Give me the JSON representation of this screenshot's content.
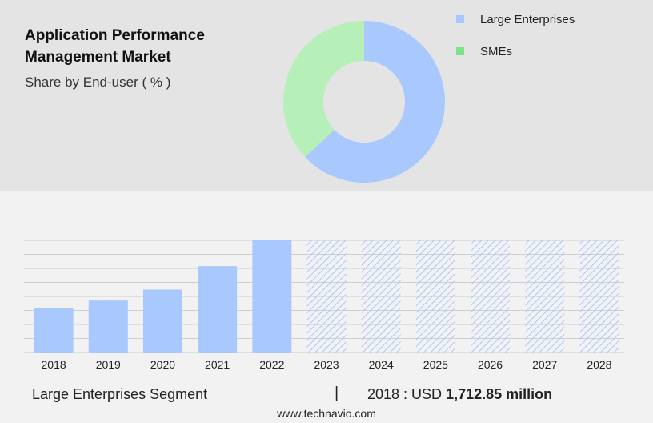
{
  "header": {
    "title": "Application Performance Management Market",
    "subtitle": "Share by End-user ( % )"
  },
  "colors": {
    "large_enterprises": "#a8c8fe",
    "smes": "#b6f0b8",
    "legend_smes": "#7de38a",
    "grid": "#cfcfcf"
  },
  "chart_data": [
    {
      "type": "pie",
      "subtype": "donut",
      "series": [
        {
          "name": "Large Enterprises",
          "value": 63
        },
        {
          "name": "SMEs",
          "value": 37
        }
      ],
      "legend": [
        "Large Enterprises",
        "SMEs"
      ],
      "legend_position": "top-right"
    },
    {
      "type": "bar",
      "categories": [
        "2018",
        "2019",
        "2020",
        "2021",
        "2022",
        "2023",
        "2024",
        "2025",
        "2026",
        "2027",
        "2028"
      ],
      "values": [
        1712.85,
        1993,
        2413,
        3312,
        4302,
        null,
        null,
        null,
        null,
        null,
        null
      ],
      "forecast": [
        false,
        false,
        false,
        false,
        false,
        true,
        true,
        true,
        true,
        true,
        true
      ],
      "forecast_height": 4302,
      "ylim": [
        0,
        4302
      ],
      "grid": true
    }
  ],
  "footer": {
    "segment": "Large Enterprises Segment",
    "divider": "|",
    "year_label": "2018 : USD",
    "value": "1,712.85 million",
    "source": "www.technavio.com"
  }
}
